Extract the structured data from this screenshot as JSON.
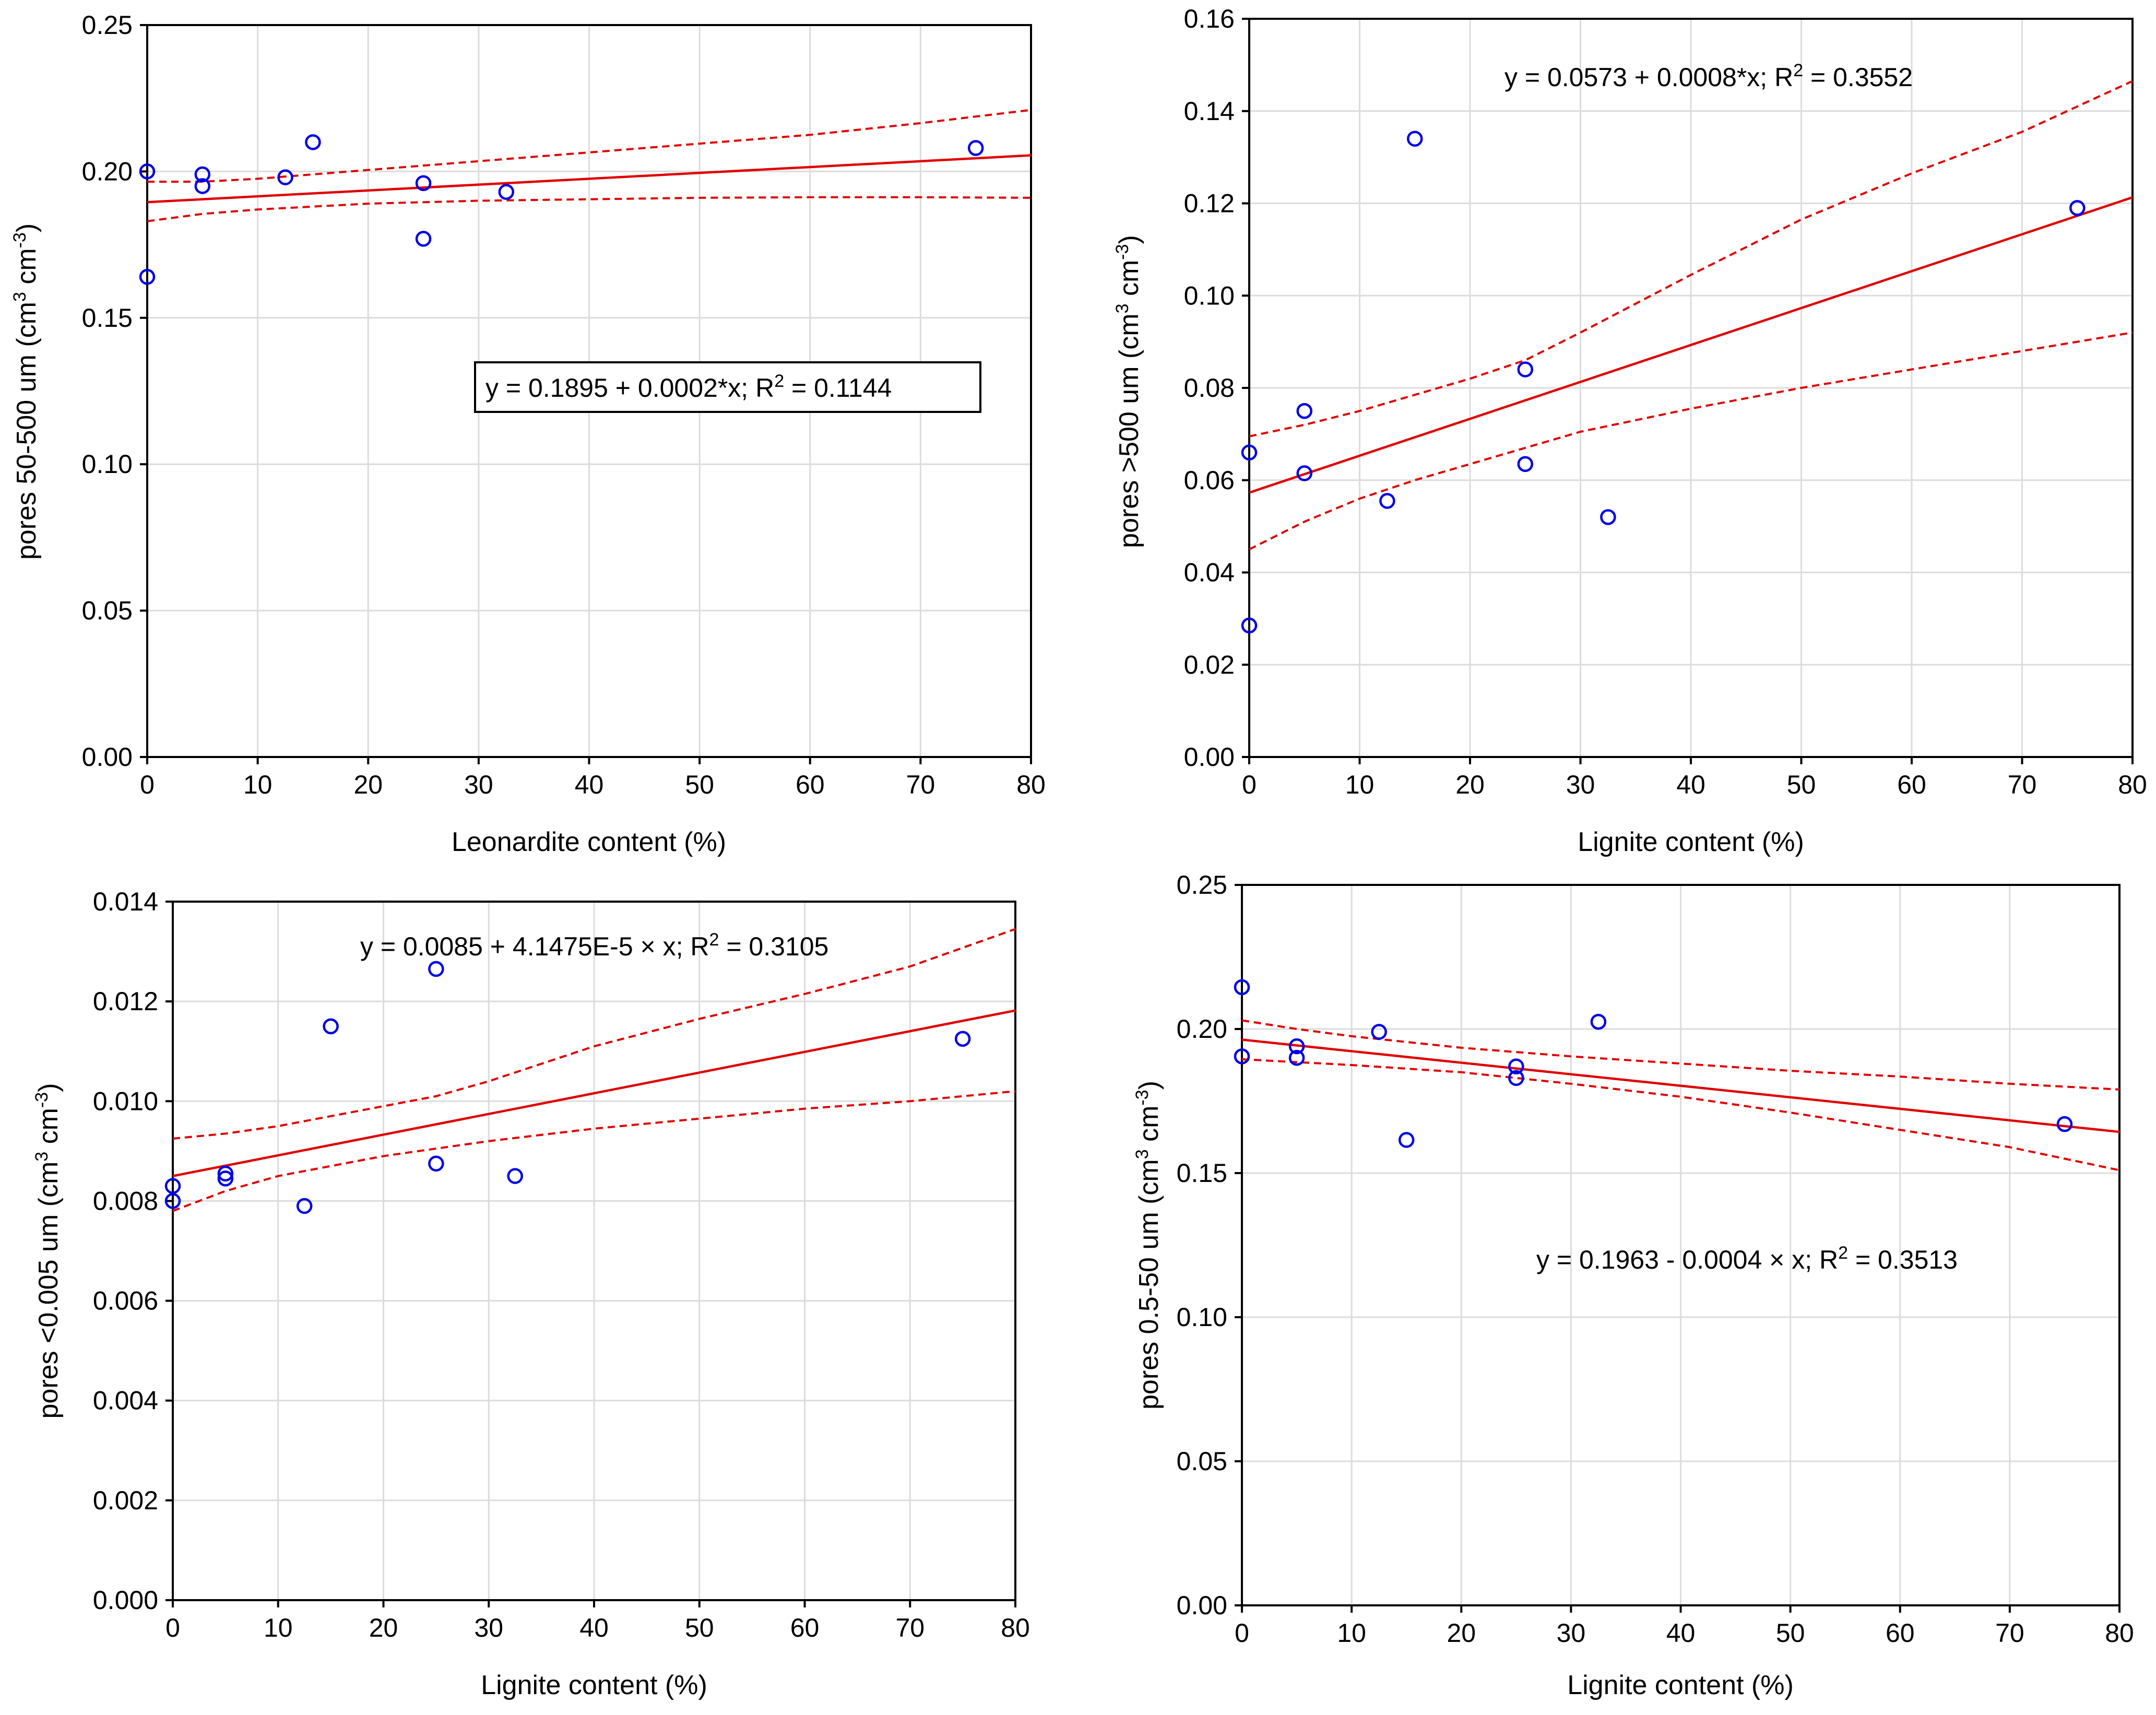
{
  "colors": {
    "fit_line": "#e00000",
    "points": "#0000e6",
    "grid": "#dcdcdc",
    "axes": "#000000"
  },
  "chart_data": [
    {
      "type": "scatter",
      "title": "",
      "xlabel": "Leonardite content (%)",
      "ylabel": "pores 50-500 um (cm³ cm⁻³)",
      "ylabel_parts": [
        "pores 50-500 um (cm",
        "3",
        " cm",
        "-3",
        ")"
      ],
      "xlim": [
        0,
        80
      ],
      "ylim": [
        0,
        0.25
      ],
      "xticks": [
        0,
        10,
        20,
        30,
        40,
        50,
        60,
        70,
        80
      ],
      "yticks": [
        0.0,
        0.05,
        0.1,
        0.15,
        0.2,
        0.25
      ],
      "ytick_labels": [
        "0.00",
        "0.05",
        "0.10",
        "0.15",
        "0.20",
        "0.25"
      ],
      "grid": true,
      "boxed_equation": true,
      "equation_parts": [
        "y = 0.1895 + 0.0002*x; R",
        "2",
        " = 0.1144"
      ],
      "regression": {
        "intercept": 0.1895,
        "slope": 0.0002,
        "r2": 0.1144
      },
      "confidence_band": {
        "x": [
          0,
          5,
          10,
          20,
          30,
          40,
          50,
          60,
          70,
          80
        ],
        "upper": [
          0.1965,
          0.1965,
          0.1975,
          0.2005,
          0.2035,
          0.2065,
          0.2095,
          0.2125,
          0.2165,
          0.221
        ],
        "lower": [
          0.183,
          0.1855,
          0.187,
          0.189,
          0.19,
          0.1905,
          0.191,
          0.1912,
          0.1912,
          0.191
        ]
      },
      "points": [
        {
          "x": 0,
          "y": 0.2
        },
        {
          "x": 0,
          "y": 0.164
        },
        {
          "x": 5,
          "y": 0.199
        },
        {
          "x": 5,
          "y": 0.195
        },
        {
          "x": 12.5,
          "y": 0.198
        },
        {
          "x": 15,
          "y": 0.21
        },
        {
          "x": 25,
          "y": 0.196
        },
        {
          "x": 25,
          "y": 0.177
        },
        {
          "x": 32.5,
          "y": 0.193
        },
        {
          "x": 75,
          "y": 0.208
        }
      ]
    },
    {
      "type": "scatter",
      "title": "",
      "xlabel": "Lignite content (%)",
      "ylabel": "pores >500 um (cm³ cm⁻³)",
      "ylabel_parts": [
        "pores >500 um (cm",
        "3",
        " cm",
        "-3",
        ")"
      ],
      "xlim": [
        0,
        80
      ],
      "ylim": [
        0,
        0.16
      ],
      "xticks": [
        0,
        10,
        20,
        30,
        40,
        50,
        60,
        70,
        80
      ],
      "yticks": [
        0.0,
        0.02,
        0.04,
        0.06,
        0.08,
        0.1,
        0.12,
        0.14,
        0.16
      ],
      "ytick_labels": [
        "0.00",
        "0.02",
        "0.04",
        "0.06",
        "0.08",
        "0.10",
        "0.12",
        "0.14",
        "0.16"
      ],
      "grid": true,
      "boxed_equation": false,
      "equation_parts": [
        "y = 0.0573 + 0.0008*x; R",
        "2",
        " = 0.3552"
      ],
      "regression": {
        "intercept": 0.0573,
        "slope": 0.0008,
        "r2": 0.3552
      },
      "confidence_band": {
        "x": [
          0,
          5,
          10,
          15,
          20,
          25,
          30,
          40,
          50,
          60,
          70,
          80
        ],
        "upper": [
          0.0695,
          0.072,
          0.075,
          0.0785,
          0.082,
          0.086,
          0.092,
          0.1045,
          0.1165,
          0.1265,
          0.1355,
          0.1465
        ],
        "lower": [
          0.045,
          0.051,
          0.056,
          0.06,
          0.0635,
          0.067,
          0.0705,
          0.0755,
          0.08,
          0.084,
          0.088,
          0.092
        ]
      },
      "points": [
        {
          "x": 0,
          "y": 0.066
        },
        {
          "x": 0,
          "y": 0.0285
        },
        {
          "x": 5,
          "y": 0.075
        },
        {
          "x": 5,
          "y": 0.0615
        },
        {
          "x": 12.5,
          "y": 0.0555
        },
        {
          "x": 15,
          "y": 0.134
        },
        {
          "x": 25,
          "y": 0.084
        },
        {
          "x": 25,
          "y": 0.0635
        },
        {
          "x": 32.5,
          "y": 0.052
        },
        {
          "x": 75,
          "y": 0.119
        }
      ]
    },
    {
      "type": "scatter",
      "title": "",
      "xlabel": "Lignite content (%)",
      "ylabel": "pores <0.005 um (cm³ cm⁻³)",
      "ylabel_parts": [
        "pores <0.005 um (cm",
        "3",
        " cm",
        "-3",
        ")"
      ],
      "xlim": [
        0,
        80
      ],
      "ylim": [
        0,
        0.014
      ],
      "xticks": [
        0,
        10,
        20,
        30,
        40,
        50,
        60,
        70,
        80
      ],
      "yticks": [
        0.0,
        0.002,
        0.004,
        0.006,
        0.008,
        0.01,
        0.012,
        0.014
      ],
      "ytick_labels": [
        "0.000",
        "0.002",
        "0.004",
        "0.006",
        "0.008",
        "0.010",
        "0.012",
        "0.014"
      ],
      "grid": true,
      "boxed_equation": false,
      "equation_parts": [
        "y = 0.0085 + 4.1475E-5 × x; R",
        "2",
        " = 0.3105"
      ],
      "regression": {
        "intercept": 0.0085,
        "slope": 4.1475e-05,
        "r2": 0.3105
      },
      "confidence_band": {
        "x": [
          0,
          5,
          10,
          15,
          20,
          25,
          30,
          40,
          50,
          60,
          70,
          80
        ],
        "upper": [
          0.00925,
          0.00935,
          0.0095,
          0.0097,
          0.0099,
          0.0101,
          0.0104,
          0.0111,
          0.01165,
          0.01215,
          0.0127,
          0.01345
        ],
        "lower": [
          0.0078,
          0.0082,
          0.0085,
          0.0087,
          0.0089,
          0.00905,
          0.0092,
          0.00945,
          0.00965,
          0.00985,
          0.01,
          0.0102
        ]
      },
      "points": [
        {
          "x": 0,
          "y": 0.0083
        },
        {
          "x": 0,
          "y": 0.008
        },
        {
          "x": 5,
          "y": 0.00855
        },
        {
          "x": 5,
          "y": 0.00845
        },
        {
          "x": 12.5,
          "y": 0.0079
        },
        {
          "x": 15,
          "y": 0.0115
        },
        {
          "x": 25,
          "y": 0.01265
        },
        {
          "x": 25,
          "y": 0.00875
        },
        {
          "x": 32.5,
          "y": 0.0085
        },
        {
          "x": 75,
          "y": 0.01125
        }
      ]
    },
    {
      "type": "scatter",
      "title": "",
      "xlabel": "Lignite content (%)",
      "ylabel": "pores 0.5-50 um (cm³ cm⁻³)",
      "ylabel_parts": [
        "pores 0.5-50 um (cm",
        "3",
        " cm",
        "-3",
        ")"
      ],
      "xlim": [
        0,
        80
      ],
      "ylim": [
        0,
        0.25
      ],
      "xticks": [
        0,
        10,
        20,
        30,
        40,
        50,
        60,
        70,
        80
      ],
      "yticks": [
        0.0,
        0.05,
        0.1,
        0.15,
        0.2,
        0.25
      ],
      "ytick_labels": [
        "0.00",
        "0.05",
        "0.10",
        "0.15",
        "0.20",
        "0.25"
      ],
      "grid": true,
      "boxed_equation": false,
      "equation_parts": [
        "y = 0.1963 - 0.0004 × x; R",
        "2",
        " = 0.3513"
      ],
      "regression": {
        "intercept": 0.1963,
        "slope": -0.0004,
        "r2": 0.3513
      },
      "confidence_band": {
        "x": [
          0,
          5,
          10,
          20,
          30,
          40,
          50,
          60,
          70,
          80
        ],
        "upper": [
          0.203,
          0.2,
          0.1975,
          0.1935,
          0.1905,
          0.188,
          0.1855,
          0.1835,
          0.181,
          0.179
        ],
        "lower": [
          0.1895,
          0.1885,
          0.1875,
          0.185,
          0.181,
          0.1765,
          0.171,
          0.165,
          0.159,
          0.151
        ]
      },
      "points": [
        {
          "x": 0,
          "y": 0.2145
        },
        {
          "x": 0,
          "y": 0.1905
        },
        {
          "x": 5,
          "y": 0.194
        },
        {
          "x": 5,
          "y": 0.19
        },
        {
          "x": 12.5,
          "y": 0.199
        },
        {
          "x": 15,
          "y": 0.1615
        },
        {
          "x": 25,
          "y": 0.187
        },
        {
          "x": 25,
          "y": 0.183
        },
        {
          "x": 32.5,
          "y": 0.2025
        },
        {
          "x": 75,
          "y": 0.167
        }
      ]
    }
  ]
}
